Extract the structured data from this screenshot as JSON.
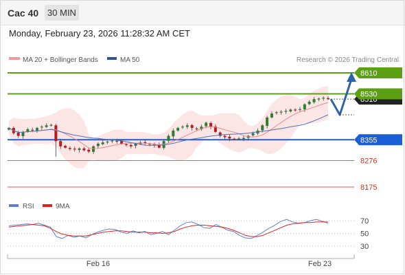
{
  "header": {
    "instrument": "Cac 40",
    "timeframe": "30 MIN"
  },
  "datetime": "Monday, February 23, 2026 11:28:32 AM CET",
  "legend": {
    "bb_label": "MA 20 + Bollinger Bands",
    "ma50_label": "MA 50",
    "credit": "Research © 2026 Trading Central"
  },
  "rsi_legend": {
    "rsi_label": "RSI",
    "ma_label": "9MA"
  },
  "colors": {
    "resistance": "#5aa012",
    "pivot": "#1a5fd6",
    "support": "#e05a5a",
    "arrow": "#2d62a8",
    "rsi": "#5b7fd6",
    "rsi_ma": "#e02020",
    "bb_band": "#fbe0e0",
    "ma20": "#e98a8a",
    "ma50": "#4d72b8"
  },
  "chart_data": {
    "type": "candlestick",
    "instrument": "Cac 40",
    "interval": "30 MIN",
    "levels": [
      {
        "label": "8610",
        "value": 8610,
        "kind": "resistance"
      },
      {
        "label": "8530",
        "value": 8530,
        "kind": "resistance"
      },
      {
        "label": "8355",
        "value": 8355,
        "kind": "pivot"
      },
      {
        "label": "8276",
        "value": 8276,
        "kind": "support"
      },
      {
        "label": "8175",
        "value": 8175,
        "kind": "support"
      }
    ],
    "current_price_label": "8510",
    "close_series": [
      8400,
      8380,
      8370,
      8385,
      8395,
      8390,
      8400,
      8405,
      8410,
      8412,
      8350,
      8330,
      8325,
      8320,
      8318,
      8322,
      8315,
      8310,
      8330,
      8340,
      8345,
      8348,
      8352,
      8350,
      8340,
      8335,
      8330,
      8340,
      8345,
      8342,
      8338,
      8335,
      8325,
      8350,
      8370,
      8390,
      8400,
      8405,
      8410,
      8400,
      8395,
      8405,
      8420,
      8405,
      8385,
      8370,
      8365,
      8360,
      8358,
      8360,
      8362,
      8370,
      8380,
      8390,
      8410,
      8440,
      8455,
      8460,
      8462,
      8465,
      8470,
      8468,
      8472,
      8490,
      8500,
      8510,
      8512,
      8515,
      8510
    ],
    "projection": [
      8510,
      8450,
      8610
    ],
    "x_ticks": [
      "Feb 16",
      "Feb 23"
    ],
    "rsi": {
      "levels": [
        "70",
        "50",
        "30"
      ],
      "rsi_values": [
        62,
        63,
        64,
        65,
        64,
        66,
        63,
        60,
        45,
        42,
        47,
        44,
        46,
        43,
        48,
        52,
        55,
        57,
        56,
        52,
        50,
        54,
        51,
        53,
        48,
        50,
        53,
        48,
        55,
        62,
        67,
        68,
        64,
        59,
        58,
        64,
        60,
        55,
        53,
        47,
        43,
        42,
        47,
        52,
        58,
        63,
        69,
        72,
        68,
        66,
        67,
        70,
        72,
        69,
        66
      ],
      "ma_values": [
        60,
        61,
        62,
        63,
        64,
        63,
        62,
        58,
        53,
        49,
        47,
        46,
        46,
        46,
        48,
        50,
        52,
        53,
        54,
        54,
        53,
        52,
        52,
        52,
        51,
        51,
        50,
        51,
        53,
        57,
        60,
        62,
        63,
        63,
        62,
        61,
        60,
        58,
        55,
        51,
        47,
        45,
        45,
        47,
        51,
        55,
        59,
        63,
        65,
        66,
        67,
        67,
        68,
        68,
        68
      ]
    }
  }
}
